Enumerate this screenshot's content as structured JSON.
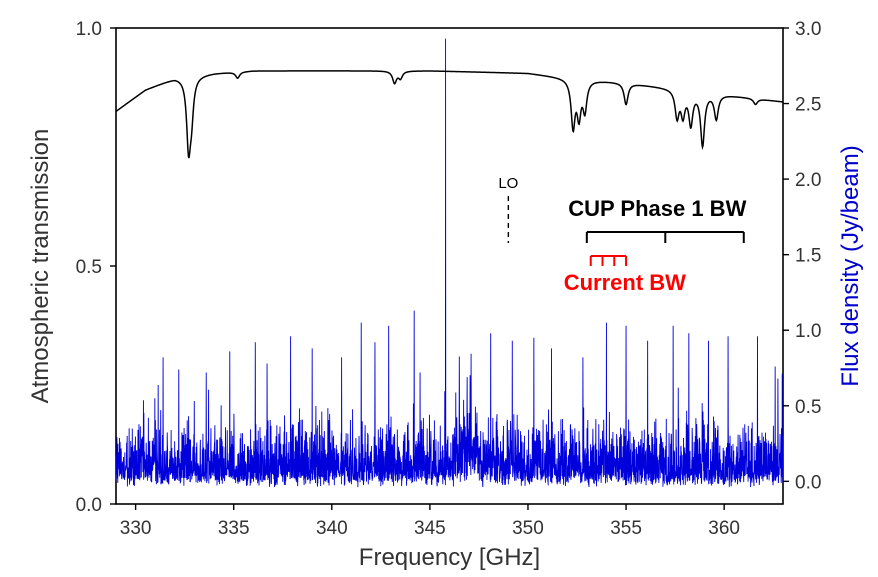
{
  "chart_data": {
    "type": "line",
    "xlabel": "Frequency  [GHz]",
    "ylabel_left": "Atmospheric transmission",
    "ylabel_right": "Flux density  (Jy/beam)",
    "xlim": [
      329,
      363
    ],
    "ylim_left": [
      0,
      1.0
    ],
    "ylim_right": [
      -0.15,
      3.0
    ],
    "x_ticks": [
      330,
      335,
      340,
      345,
      350,
      355,
      360
    ],
    "x_tick_labels": [
      "330",
      "335",
      "340",
      "345",
      "350",
      "355",
      "360"
    ],
    "y_left_ticks": [
      0.0,
      0.5,
      1.0
    ],
    "y_left_tick_labels": [
      "0.0",
      "0.5",
      "1.0"
    ],
    "y_right_ticks": [
      0.0,
      0.5,
      1.0,
      1.5,
      2.0,
      2.5,
      3.0
    ],
    "y_right_tick_labels": [
      "0.0",
      "0.5",
      "1.0",
      "1.5",
      "2.0",
      "2.5",
      "3.0"
    ],
    "grid": false,
    "colors": {
      "transmission": "#000000",
      "flux": "#0000dd",
      "current_bw": "#ff0000",
      "axis_text": "#333333",
      "right_label": "#0000cc"
    },
    "series": [
      {
        "axis": "left",
        "color": "#000000",
        "baseline": [
          [
            329,
            0.825
          ],
          [
            330.5,
            0.87
          ],
          [
            332,
            0.895
          ],
          [
            334,
            0.905
          ],
          [
            336,
            0.91
          ],
          [
            345,
            0.91
          ],
          [
            350,
            0.905
          ],
          [
            352,
            0.895
          ],
          [
            355,
            0.885
          ],
          [
            358,
            0.87
          ],
          [
            361,
            0.855
          ],
          [
            363,
            0.845
          ]
        ],
        "dips": [
          {
            "x": 332.7,
            "y": 0.755
          },
          {
            "x": 332.85,
            "y": 0.83
          },
          {
            "x": 335.2,
            "y": 0.895
          },
          {
            "x": 343.2,
            "y": 0.885
          },
          {
            "x": 343.5,
            "y": 0.895
          },
          {
            "x": 352.3,
            "y": 0.795
          },
          {
            "x": 352.6,
            "y": 0.82
          },
          {
            "x": 352.9,
            "y": 0.83
          },
          {
            "x": 355.0,
            "y": 0.84
          },
          {
            "x": 357.6,
            "y": 0.815
          },
          {
            "x": 357.9,
            "y": 0.82
          },
          {
            "x": 358.3,
            "y": 0.8
          },
          {
            "x": 358.9,
            "y": 0.755
          },
          {
            "x": 359.6,
            "y": 0.81
          },
          {
            "x": 361.6,
            "y": 0.84
          }
        ]
      },
      {
        "axis": "right",
        "color": "#0000dd",
        "noise_ceiling": 0.45,
        "peaks": [
          {
            "x": 345.8,
            "y": 2.93
          },
          {
            "x": 331.4,
            "y": 0.82
          },
          {
            "x": 332.2,
            "y": 0.74
          },
          {
            "x": 333.6,
            "y": 0.72
          },
          {
            "x": 334.8,
            "y": 0.86
          },
          {
            "x": 336.1,
            "y": 0.92
          },
          {
            "x": 336.7,
            "y": 0.78
          },
          {
            "x": 337.9,
            "y": 0.96
          },
          {
            "x": 339.0,
            "y": 0.88
          },
          {
            "x": 340.5,
            "y": 0.82
          },
          {
            "x": 341.5,
            "y": 1.05
          },
          {
            "x": 342.2,
            "y": 0.92
          },
          {
            "x": 342.9,
            "y": 1.03
          },
          {
            "x": 344.2,
            "y": 1.13
          },
          {
            "x": 344.5,
            "y": 0.72
          },
          {
            "x": 346.5,
            "y": 0.62
          },
          {
            "x": 347.1,
            "y": 0.66
          },
          {
            "x": 348.1,
            "y": 0.98
          },
          {
            "x": 349.2,
            "y": 0.93
          },
          {
            "x": 350.3,
            "y": 0.95
          },
          {
            "x": 351.2,
            "y": 0.88
          },
          {
            "x": 352.8,
            "y": 0.82
          },
          {
            "x": 354.0,
            "y": 1.05
          },
          {
            "x": 355.0,
            "y": 1.03
          },
          {
            "x": 356.1,
            "y": 0.93
          },
          {
            "x": 357.4,
            "y": 1.03
          },
          {
            "x": 358.2,
            "y": 0.98
          },
          {
            "x": 359.2,
            "y": 0.93
          },
          {
            "x": 360.2,
            "y": 0.96
          },
          {
            "x": 361.7,
            "y": 0.96
          },
          {
            "x": 362.6,
            "y": 0.76
          }
        ]
      }
    ],
    "annotations": {
      "lo_label": "LO",
      "lo_x": 349,
      "cup_label": "CUP Phase 1 BW",
      "cup_bw": [
        353,
        361
      ],
      "cup_mid": 357,
      "current_label": "Current BW",
      "current_ticks": [
        353.2,
        353.8,
        354.4,
        355.0
      ]
    }
  }
}
